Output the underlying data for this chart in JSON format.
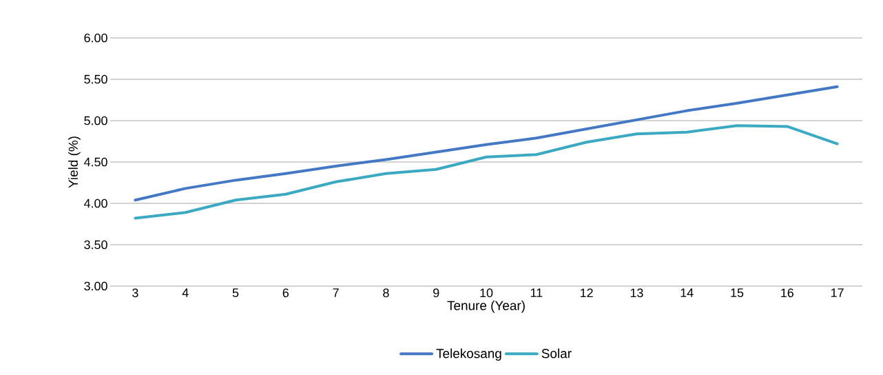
{
  "chart_data": {
    "type": "line",
    "xlabel": "Tenure (Year)",
    "ylabel": "Yield (%)",
    "categories": [
      "3",
      "4",
      "5",
      "6",
      "7",
      "8",
      "9",
      "10",
      "11",
      "12",
      "13",
      "14",
      "15",
      "16",
      "17"
    ],
    "series": [
      {
        "name": "Telekosang",
        "color": "#4478c4",
        "values": [
          4.04,
          4.18,
          4.28,
          4.36,
          4.45,
          4.53,
          4.62,
          4.71,
          4.79,
          4.9,
          5.01,
          5.12,
          5.21,
          5.31,
          5.41
        ]
      },
      {
        "name": "Solar",
        "color": "#3ba9c1",
        "values": [
          3.82,
          3.89,
          4.04,
          4.11,
          4.26,
          4.36,
          4.41,
          4.56,
          4.59,
          4.74,
          4.84,
          4.86,
          4.94,
          4.93,
          4.72
        ]
      }
    ],
    "ylim": [
      3.0,
      6.0
    ],
    "yticks": [
      {
        "value": 3.0,
        "label": "3.00"
      },
      {
        "value": 3.5,
        "label": "3.50"
      },
      {
        "value": 4.0,
        "label": "4.00"
      },
      {
        "value": 4.5,
        "label": "4.50"
      },
      {
        "value": 5.0,
        "label": "5.00"
      },
      {
        "value": 5.5,
        "label": "5.50"
      },
      {
        "value": 6.0,
        "label": "6.00"
      }
    ],
    "grid": "y",
    "legend": "bottom",
    "marker": "none",
    "line_style": "solid"
  }
}
